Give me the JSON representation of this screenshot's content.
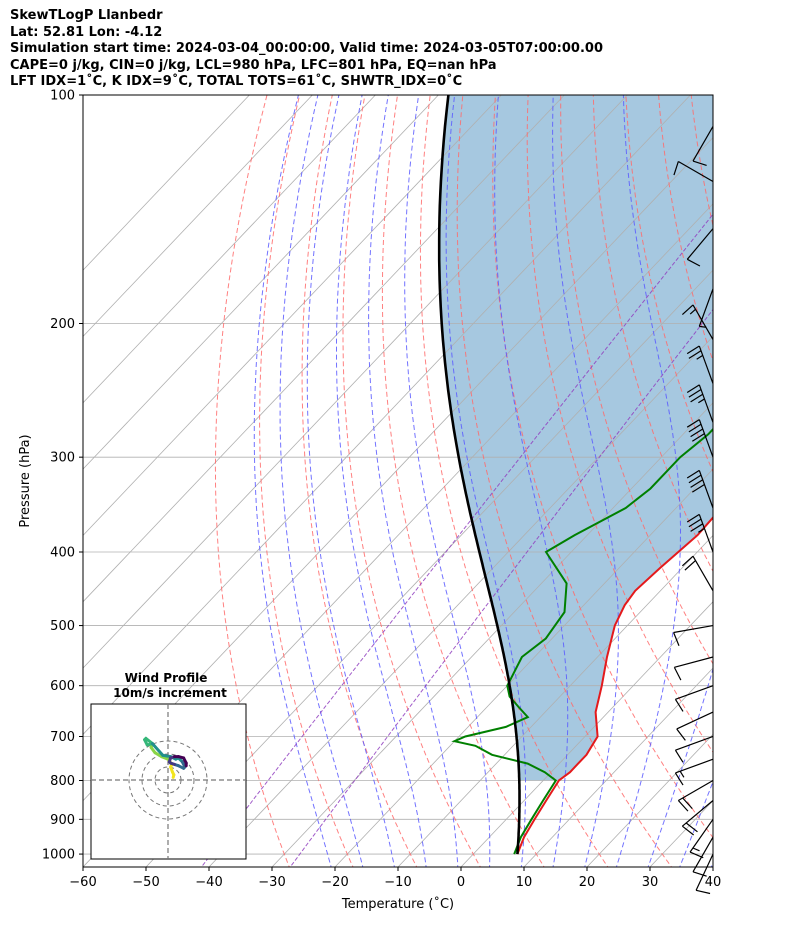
{
  "header": {
    "line1": "SkewTLogP Llanbedr",
    "line2": "Lat: 52.81   Lon: -4.12",
    "line3": "Simulation start time: 2024-03-04_00:00:00, Valid time: 2024-03-05T07:00:00.00",
    "line4": "CAPE=0 j/kg, CIN=0 j/kg, LCL=980 hPa, LFC=801 hPa, EQ=nan hPa",
    "line5": "LFT IDX=1˚C, K IDX=9˚C, TOTAL TOTS=61˚C, SHWTR_IDX=0˚C"
  },
  "colors": {
    "temperature": "#e41a1c",
    "dewpoint": "#008000",
    "parcel": "#000000",
    "cape_fill": "#a6c8e0",
    "dry_adiabats": "#ff6b6b",
    "moist_adiabats": "#5a5aff",
    "mixing_ratio": "#9040c0",
    "isotherms": "#b0b0b0"
  },
  "chart_data": [
    {
      "type": "line",
      "name": "skewT",
      "xlabel": "Temperature (˚C)",
      "ylabel": "Pressure (hPa)",
      "xlim": [
        -60,
        40
      ],
      "ylim": [
        1040,
        100
      ],
      "y_scale": "log",
      "grid": true,
      "x_ticks": [
        -60,
        -50,
        -40,
        -30,
        -20,
        -10,
        0,
        10,
        20,
        30,
        40
      ],
      "y_ticks": [
        100,
        200,
        300,
        400,
        500,
        600,
        700,
        800,
        900,
        1000
      ],
      "temperature": [
        [
          1000,
          7
        ],
        [
          950,
          5.5
        ],
        [
          900,
          4.5
        ],
        [
          850,
          3.5
        ],
        [
          800,
          2.5
        ],
        [
          780,
          3
        ],
        [
          760,
          3
        ],
        [
          740,
          3
        ],
        [
          720,
          2.5
        ],
        [
          700,
          2
        ],
        [
          650,
          -2
        ],
        [
          600,
          -5
        ],
        [
          550,
          -8.5
        ],
        [
          500,
          -12
        ],
        [
          470,
          -13.5
        ],
        [
          450,
          -14
        ],
        [
          420,
          -13.5
        ],
        [
          400,
          -13
        ],
        [
          380,
          -12.5
        ],
        [
          350,
          -12.8
        ],
        [
          320,
          -13.5
        ],
        [
          300,
          -14
        ],
        [
          280,
          -13.5
        ],
        [
          260,
          -12.5
        ],
        [
          250,
          -11
        ],
        [
          230,
          -7
        ],
        [
          210,
          -3
        ],
        [
          200,
          0
        ],
        [
          180,
          5
        ],
        [
          170,
          8
        ],
        [
          160,
          11
        ],
        [
          150,
          13
        ],
        [
          140,
          14.5
        ],
        [
          130,
          16
        ],
        [
          120,
          16.5
        ],
        [
          110,
          16.5
        ],
        [
          100,
          16
        ]
      ],
      "dewpoint": [
        [
          1000,
          6.5
        ],
        [
          950,
          5
        ],
        [
          900,
          4
        ],
        [
          850,
          3
        ],
        [
          800,
          2
        ],
        [
          780,
          -1
        ],
        [
          760,
          -5
        ],
        [
          740,
          -12
        ],
        [
          720,
          -16
        ],
        [
          710,
          -20
        ],
        [
          700,
          -19
        ],
        [
          680,
          -14
        ],
        [
          660,
          -12
        ],
        [
          640,
          -15
        ],
        [
          620,
          -18
        ],
        [
          600,
          -20
        ],
        [
          550,
          -22
        ],
        [
          520,
          -21
        ],
        [
          480,
          -22
        ],
        [
          440,
          -26
        ],
        [
          400,
          -34
        ],
        [
          380,
          -32
        ],
        [
          350,
          -28
        ],
        [
          330,
          -27
        ],
        [
          300,
          -27
        ],
        [
          280,
          -26
        ],
        [
          250,
          -26
        ],
        [
          230,
          -26
        ],
        [
          210,
          -28
        ],
        [
          195,
          -29
        ],
        [
          180,
          -29
        ],
        [
          170,
          -28
        ],
        [
          160,
          -26
        ],
        [
          150,
          -22
        ],
        [
          140,
          -19
        ],
        [
          130,
          -16
        ],
        [
          120,
          -13
        ],
        [
          110,
          -10
        ],
        [
          100,
          -7
        ]
      ],
      "parcel_profile": "computed moist adiabat from 1000 hPa, 7˚C",
      "wind_barbs": [
        {
          "p": 1000,
          "dir": 205,
          "spd": 12
        },
        {
          "p": 950,
          "dir": 210,
          "spd": 14
        },
        {
          "p": 900,
          "dir": 215,
          "spd": 17
        },
        {
          "p": 850,
          "dir": 230,
          "spd": 20
        },
        {
          "p": 800,
          "dir": 240,
          "spd": 20
        },
        {
          "p": 750,
          "dir": 250,
          "spd": 15
        },
        {
          "p": 700,
          "dir": 250,
          "spd": 12
        },
        {
          "p": 650,
          "dir": 245,
          "spd": 12
        },
        {
          "p": 600,
          "dir": 250,
          "spd": 10
        },
        {
          "p": 550,
          "dir": 255,
          "spd": 10
        },
        {
          "p": 500,
          "dir": 260,
          "spd": 10
        },
        {
          "p": 450,
          "dir": 330,
          "spd": 20
        },
        {
          "p": 400,
          "dir": 340,
          "spd": 35
        },
        {
          "p": 350,
          "dir": 340,
          "spd": 40
        },
        {
          "p": 300,
          "dir": 340,
          "spd": 40
        },
        {
          "p": 270,
          "dir": 340,
          "spd": 35
        },
        {
          "p": 240,
          "dir": 340,
          "spd": 25
        },
        {
          "p": 210,
          "dir": 330,
          "spd": 15
        },
        {
          "p": 180,
          "dir": 200,
          "spd": 8
        },
        {
          "p": 150,
          "dir": 220,
          "spd": 10
        },
        {
          "p": 130,
          "dir": 300,
          "spd": 10
        },
        {
          "p": 110,
          "dir": 210,
          "spd": 10
        }
      ]
    },
    {
      "type": "line",
      "name": "hodograph",
      "title": "Wind Profile",
      "subtitle": "10m/s increment",
      "rings_ms": [
        10,
        20,
        30
      ],
      "uv_points": [
        [
          4,
          2
        ],
        [
          4.5,
          4
        ],
        [
          3.5,
          6
        ],
        [
          2,
          10
        ],
        [
          3,
          12
        ],
        [
          0,
          16
        ],
        [
          -5,
          18
        ],
        [
          -10,
          21
        ],
        [
          -13,
          25
        ],
        [
          -12,
          28
        ],
        [
          -16,
          27
        ],
        [
          -18,
          31
        ],
        [
          -17,
          32
        ],
        [
          -12,
          28
        ],
        [
          -4,
          19
        ],
        [
          2,
          18
        ],
        [
          6,
          16
        ],
        [
          8,
          17
        ],
        [
          11,
          14
        ],
        [
          13,
          10
        ],
        [
          12,
          9
        ],
        [
          8,
          11
        ],
        [
          5,
          12
        ],
        [
          2,
          13
        ],
        [
          1,
          14
        ],
        [
          2,
          17
        ],
        [
          5,
          18
        ],
        [
          8,
          18
        ],
        [
          12,
          17
        ],
        [
          14,
          13
        ],
        [
          14,
          11
        ]
      ],
      "colormap": [
        "#f2e51d",
        "#8ad547",
        "#35b779",
        "#21908d",
        "#31688e",
        "#443a83",
        "#440154"
      ]
    }
  ]
}
